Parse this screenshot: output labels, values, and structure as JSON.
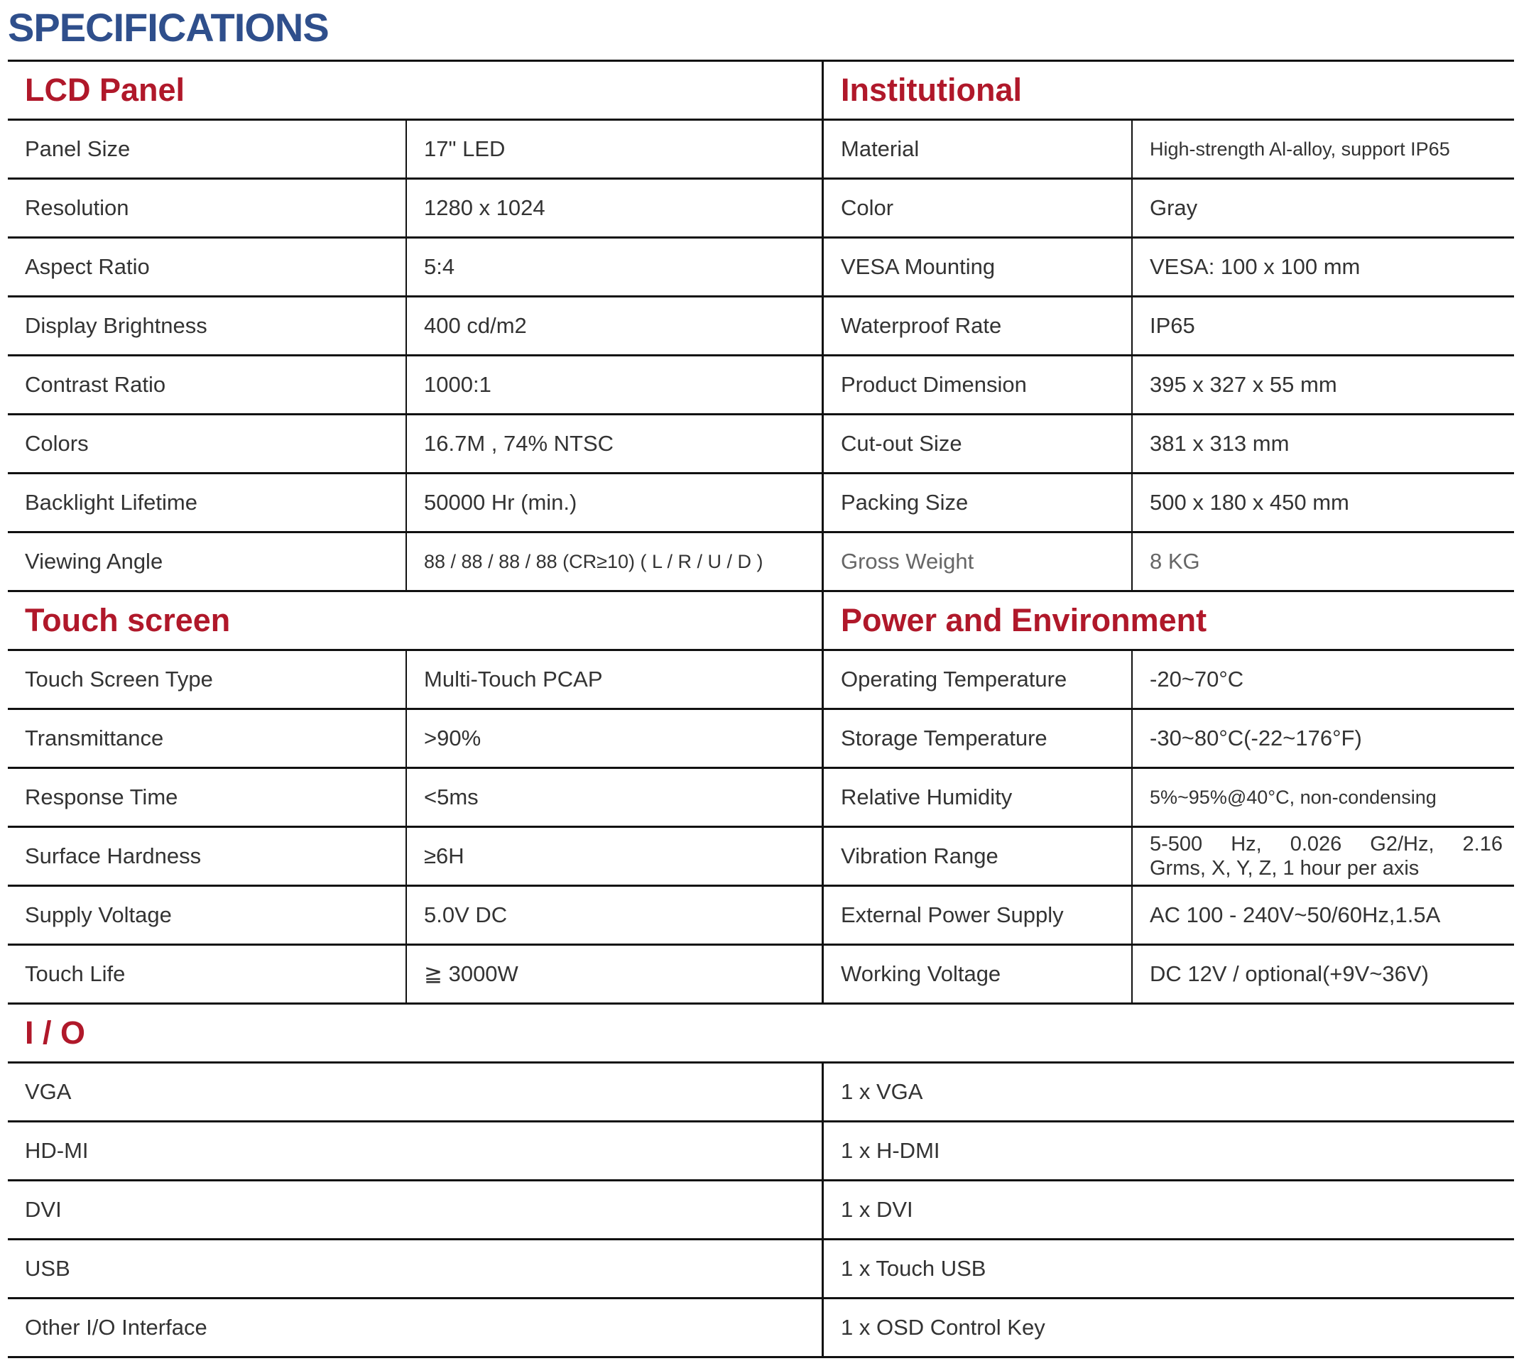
{
  "title": "SPECIFICATIONS",
  "lcd": {
    "heading": "LCD Panel",
    "rows": [
      [
        "Panel Size",
        "17\" LED"
      ],
      [
        "Resolution",
        "1280 x 1024"
      ],
      [
        "Aspect Ratio",
        "5:4"
      ],
      [
        "Display Brightness",
        "400 cd/m2"
      ],
      [
        "Contrast Ratio",
        "1000:1"
      ],
      [
        "Colors",
        "16.7M , 74% NTSC"
      ],
      [
        "Backlight Lifetime",
        "50000 Hr (min.)"
      ],
      [
        "Viewing Angle",
        "88 / 88 / 88 / 88 (CR≥10) ( L / R / U / D )"
      ]
    ]
  },
  "institutional": {
    "heading": "Institutional",
    "rows": [
      [
        "Material",
        "High-strength Al-alloy, support IP65"
      ],
      [
        "Color",
        "Gray"
      ],
      [
        "VESA Mounting",
        "VESA: 100 x 100 mm"
      ],
      [
        "Waterproof Rate",
        "IP65"
      ],
      [
        "Product Dimension",
        "395 x 327 x 55 mm"
      ],
      [
        "Cut-out Size",
        "381 x 313 mm"
      ],
      [
        "Packing Size",
        "500 x 180 x 450 mm"
      ],
      [
        "Gross Weight",
        "8 KG"
      ]
    ]
  },
  "touch": {
    "heading": "Touch screen",
    "rows": [
      [
        "Touch Screen Type",
        "Multi-Touch PCAP"
      ],
      [
        "Transmittance",
        ">90%"
      ],
      [
        "Response Time",
        "<5ms"
      ],
      [
        "Surface Hardness",
        "≥6H"
      ],
      [
        "Supply Voltage",
        "5.0V DC"
      ],
      [
        "Touch Life",
        "≧ 3000W"
      ]
    ]
  },
  "power": {
    "heading": "Power and Environment",
    "rows": [
      [
        "Operating Temperature",
        "-20~70°C"
      ],
      [
        "Storage Temperature",
        "-30~80°C(-22~176°F)"
      ],
      [
        "Relative Humidity",
        "5%~95%@40°C, non-condensing"
      ],
      [
        "Vibration Range",
        "5-500 Hz, 0.026 G2/Hz, 2.16",
        "Grms, X, Y, Z, 1 hour per axis"
      ],
      [
        "External Power Supply",
        "AC 100 - 240V~50/60Hz,1.5A"
      ],
      [
        "Working Voltage",
        "DC 12V / optional(+9V~36V)"
      ]
    ]
  },
  "io": {
    "heading": "I / O",
    "rows": [
      [
        "VGA",
        "1 x VGA"
      ],
      [
        "HD-MI",
        "1 x H-DMI"
      ],
      [
        "DVI",
        "1 x DVI"
      ],
      [
        "USB",
        "1 x Touch  USB"
      ],
      [
        "Other I/O Interface",
        "1 x OSD Control Key"
      ]
    ]
  }
}
